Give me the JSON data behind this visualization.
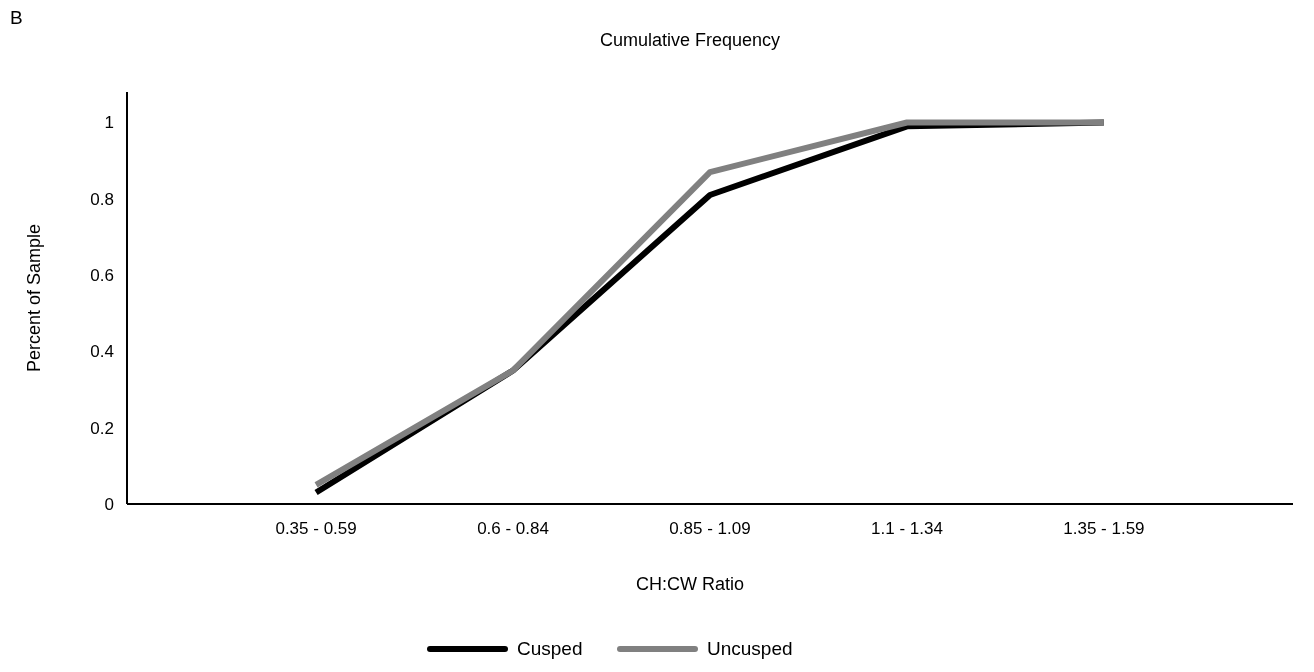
{
  "chart_data": {
    "type": "line",
    "title": "Cumulative Frequency",
    "xlabel": "CH:CW Ratio",
    "ylabel": "Percent of Sample",
    "annotations": [
      "B"
    ],
    "categories": [
      "0.35 - 0.59",
      "0.6 - 0.84",
      "0.85 - 1.09",
      "1.1 - 1.34",
      "1.35 - 1.59"
    ],
    "series": [
      {
        "name": "Cusped",
        "color": "#000000",
        "values": [
          0.03,
          0.35,
          0.81,
          0.99,
          1
        ]
      },
      {
        "name": "Uncusped",
        "color": "#808080",
        "values": [
          0.05,
          0.35,
          0.87,
          1,
          1
        ]
      }
    ],
    "ylim": [
      0,
      1.08
    ],
    "yticks": [
      0,
      0.2,
      0.4,
      0.6,
      0.8,
      1
    ],
    "grid": false,
    "legend": "bottom",
    "marker": "none",
    "line_style": "solid"
  }
}
